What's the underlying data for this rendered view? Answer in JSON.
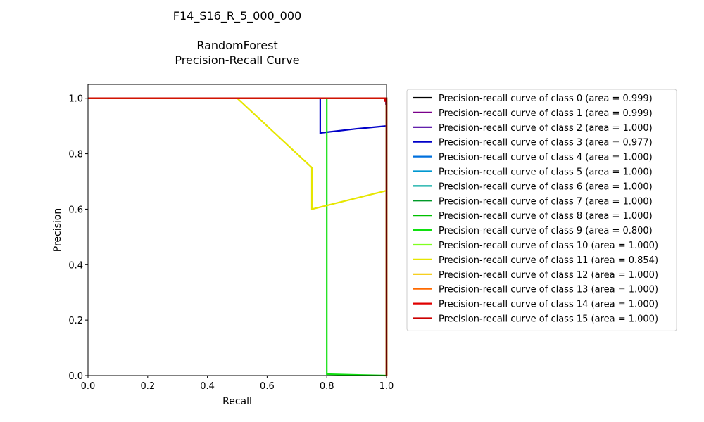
{
  "chart_data": {
    "type": "line",
    "title_lines": [
      "F14_S16_R_5_000_000",
      "",
      "RandomForest",
      "Precision-Recall Curve"
    ],
    "xlabel": "Recall",
    "ylabel": "Precision",
    "xlim": [
      0.0,
      1.0
    ],
    "ylim": [
      0.0,
      1.05
    ],
    "xticks": [
      0.0,
      0.2,
      0.4,
      0.6,
      0.8,
      1.0
    ],
    "xtick_labels": [
      "0.0",
      "0.2",
      "0.4",
      "0.6",
      "0.8",
      "1.0"
    ],
    "yticks": [
      0.0,
      0.2,
      0.4,
      0.6,
      0.8,
      1.0
    ],
    "ytick_labels": [
      "0.0",
      "0.2",
      "0.4",
      "0.6",
      "0.8",
      "1.0"
    ],
    "grid": false,
    "legend_position": "outside-right",
    "series": [
      {
        "name": "Precision-recall curve of class 0 (area = 0.999)",
        "color": "#000000",
        "points": [
          [
            0,
            1.0
          ],
          [
            0.998,
            1.0
          ],
          [
            0.998,
            0.98
          ],
          [
            1.0,
            0.98
          ],
          [
            1.0,
            0.0
          ]
        ]
      },
      {
        "name": "Precision-recall curve of class 1 (area = 0.999)",
        "color": "#7a008a",
        "points": [
          [
            0,
            1.0
          ],
          [
            0.998,
            1.0
          ],
          [
            0.998,
            0.98
          ],
          [
            1.0,
            0.98
          ],
          [
            1.0,
            0.0
          ]
        ]
      },
      {
        "name": "Precision-recall curve of class 2 (area = 1.000)",
        "color": "#4b00a0",
        "points": [
          [
            0,
            1.0
          ],
          [
            1.0,
            1.0
          ],
          [
            1.0,
            0.0
          ]
        ]
      },
      {
        "name": "Precision-recall curve of class 3 (area = 0.977)",
        "color": "#0000c8",
        "points": [
          [
            0,
            1.0
          ],
          [
            0.778,
            1.0
          ],
          [
            0.778,
            0.875
          ],
          [
            0.9,
            0.89
          ],
          [
            1.0,
            0.9
          ],
          [
            1.0,
            0.0
          ]
        ]
      },
      {
        "name": "Precision-recall curve of class 4 (area = 1.000)",
        "color": "#0070dd",
        "points": [
          [
            0,
            1.0
          ],
          [
            1.0,
            1.0
          ],
          [
            1.0,
            0.0
          ]
        ]
      },
      {
        "name": "Precision-recall curve of class 5 (area = 1.000)",
        "color": "#0098d0",
        "points": [
          [
            0,
            1.0
          ],
          [
            1.0,
            1.0
          ],
          [
            1.0,
            0.0
          ]
        ]
      },
      {
        "name": "Precision-recall curve of class 6 (area = 1.000)",
        "color": "#00a8a0",
        "points": [
          [
            0,
            1.0
          ],
          [
            1.0,
            1.0
          ],
          [
            1.0,
            0.0
          ]
        ]
      },
      {
        "name": "Precision-recall curve of class 7 (area = 1.000)",
        "color": "#009a28",
        "points": [
          [
            0,
            1.0
          ],
          [
            1.0,
            1.0
          ],
          [
            1.0,
            0.0
          ]
        ]
      },
      {
        "name": "Precision-recall curve of class 8 (area = 1.000)",
        "color": "#00c000",
        "points": [
          [
            0,
            1.0
          ],
          [
            1.0,
            1.0
          ],
          [
            1.0,
            0.0
          ]
        ]
      },
      {
        "name": "Precision-recall curve of class 9 (area = 0.800)",
        "color": "#10e010",
        "points": [
          [
            0,
            1.0
          ],
          [
            0.8,
            1.0
          ],
          [
            0.8,
            0.005
          ],
          [
            1.0,
            0.0
          ]
        ]
      },
      {
        "name": "Precision-recall curve of class 10 (area = 1.000)",
        "color": "#80ff20",
        "points": [
          [
            0,
            1.0
          ],
          [
            1.0,
            1.0
          ],
          [
            1.0,
            0.0
          ]
        ]
      },
      {
        "name": "Precision-recall curve of class 11 (area = 0.854)",
        "color": "#e6e600",
        "points": [
          [
            0,
            1.0
          ],
          [
            0.5,
            1.0
          ],
          [
            0.75,
            0.75
          ],
          [
            0.75,
            0.6
          ],
          [
            1.0,
            0.667
          ],
          [
            1.0,
            0.0
          ]
        ]
      },
      {
        "name": "Precision-recall curve of class 12 (area = 1.000)",
        "color": "#f5c800",
        "points": [
          [
            0,
            1.0
          ],
          [
            1.0,
            1.0
          ],
          [
            1.0,
            0.0
          ]
        ]
      },
      {
        "name": "Precision-recall curve of class 13 (area = 1.000)",
        "color": "#ff6a00",
        "points": [
          [
            0,
            1.0
          ],
          [
            1.0,
            1.0
          ],
          [
            1.0,
            0.0
          ]
        ]
      },
      {
        "name": "Precision-recall curve of class 14 (area = 1.000)",
        "color": "#e00000",
        "points": [
          [
            0,
            1.0
          ],
          [
            1.0,
            1.0
          ],
          [
            1.0,
            0.0
          ]
        ]
      },
      {
        "name": "Precision-recall curve of class 15 (area = 1.000)",
        "color": "#cc0000",
        "points": [
          [
            0,
            1.0
          ],
          [
            0.995,
            1.0
          ],
          [
            0.995,
            0.99
          ],
          [
            1.0,
            0.99
          ],
          [
            1.0,
            0.0
          ]
        ]
      }
    ]
  }
}
